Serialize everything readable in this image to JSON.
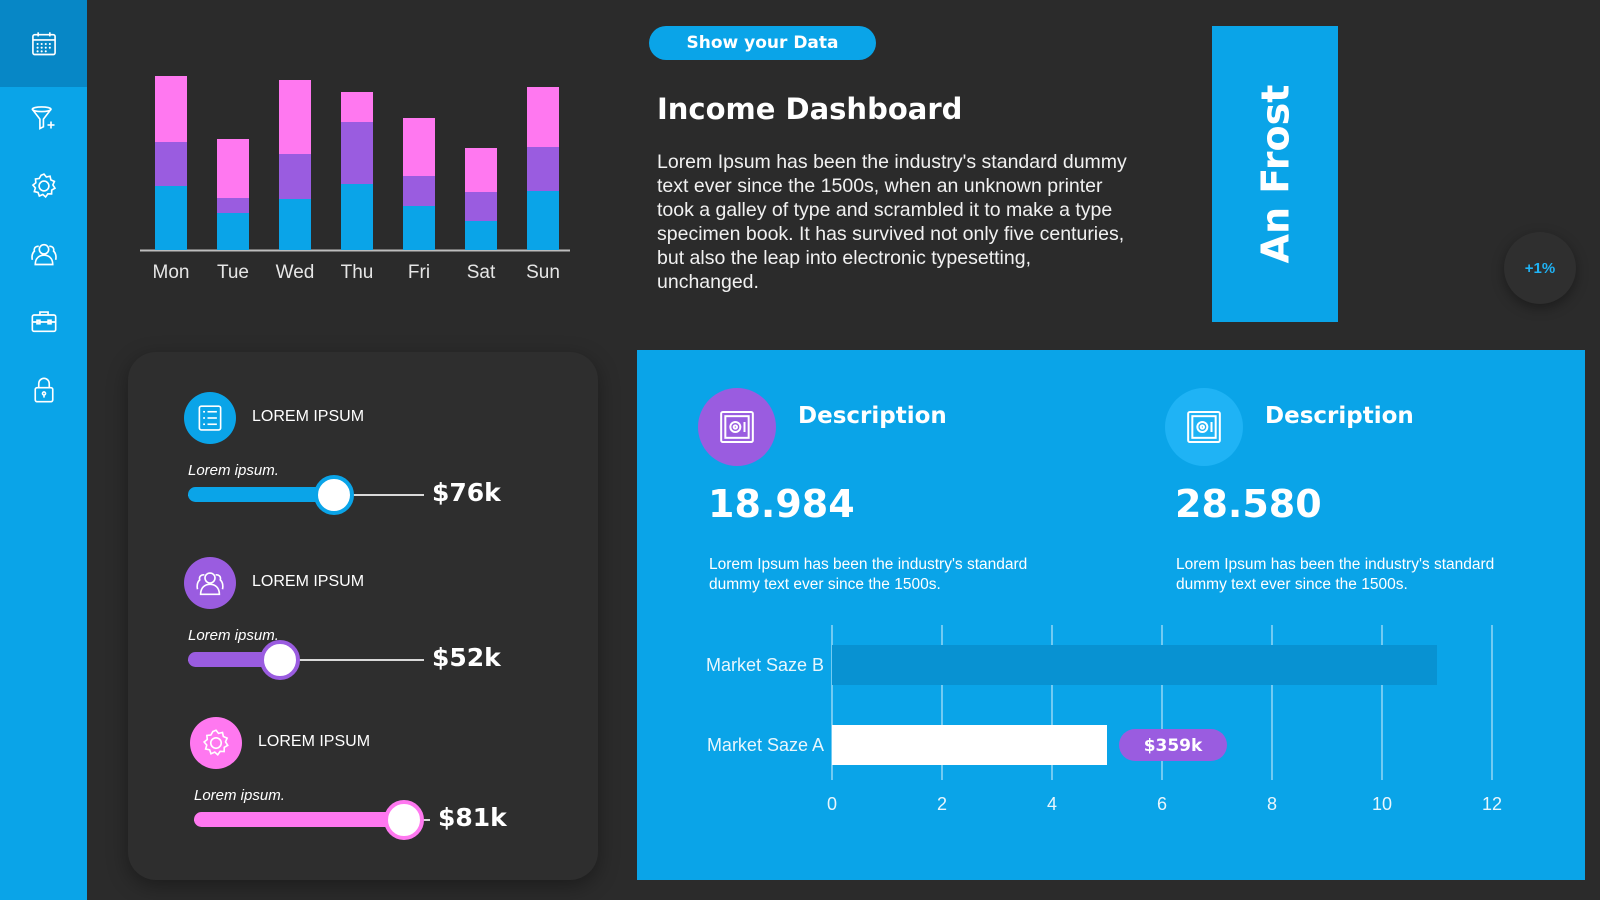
{
  "sidebar": {
    "items": [
      {
        "icon": "calendar-icon",
        "active": true
      },
      {
        "icon": "funnel-plus-icon",
        "active": false
      },
      {
        "icon": "gear-icon",
        "active": false
      },
      {
        "icon": "users-icon",
        "active": false
      },
      {
        "icon": "briefcase-icon",
        "active": false
      },
      {
        "icon": "lock-icon",
        "active": false
      }
    ]
  },
  "header": {
    "button_label": "Show your  Data",
    "title": "Income Dashboard",
    "intro": "Lorem Ipsum has been the industry's standard dummy text ever since the 1500s, when an unknown printer took a galley of type and scrambled it to make a type specimen book. It has survived not only five centuries, but also the leap into electronic typesetting, unchanged.",
    "name": "An Frost",
    "percent_badge": "+1%"
  },
  "sliders": [
    {
      "label": "LOREM IPSUM",
      "sub": "Lorem ipsum.",
      "value": "$76k",
      "level": 0.62,
      "color": "#0aa4e8",
      "icon": "list-icon"
    },
    {
      "label": "LOREM IPSUM",
      "sub": "Lorem ipsum.",
      "value": "$52k",
      "level": 0.39,
      "color": "#9a5ce0",
      "icon": "users-icon"
    },
    {
      "label": "LOREM IPSUM",
      "sub": "Lorem ipsum.",
      "value": "$81k",
      "level": 0.89,
      "color": "#ff78f0",
      "icon": "gear-icon"
    }
  ],
  "descriptions": [
    {
      "title": "Description",
      "number": "18.984",
      "text": "Lorem Ipsum has been the industry's standard dummy text ever since the 1500s.",
      "icon": "safe-icon",
      "icon_bg": "#9a5ce0"
    },
    {
      "title": "Description",
      "number": "28.580",
      "text": "Lorem Ipsum has been the industry's standard dummy text ever since the 1500s.",
      "icon": "safe-icon",
      "icon_bg": "#1fb3f5"
    }
  ],
  "chart_data": [
    {
      "type": "bar",
      "stacked": true,
      "categories": [
        "Mon",
        "Tue",
        "Wed",
        "Thu",
        "Fri",
        "Sat",
        "Sun"
      ],
      "series": [
        {
          "values": [
            64,
            37,
            51,
            66,
            44,
            29,
            59
          ],
          "color": "#0aa4e8"
        },
        {
          "values": [
            44,
            15,
            45,
            62,
            30,
            29,
            44
          ],
          "color": "#9a5ce0"
        },
        {
          "values": [
            66,
            59,
            74,
            30,
            58,
            44,
            60
          ],
          "color": "#ff78f0"
        }
      ],
      "ylim": [
        0,
        180
      ],
      "grid": false
    },
    {
      "type": "bar",
      "orientation": "horizontal",
      "categories": [
        "Market Saze B",
        "Market Saze A"
      ],
      "values": [
        11,
        5
      ],
      "value_labels": [
        "",
        "$359k"
      ],
      "bar_colors": [
        "#0892d2",
        "#ffffff"
      ],
      "label_badge_color": "#9a5ce0",
      "xlim": [
        0,
        12
      ],
      "xticks": [
        0,
        2,
        4,
        6,
        8,
        10,
        12
      ],
      "grid": true
    }
  ]
}
